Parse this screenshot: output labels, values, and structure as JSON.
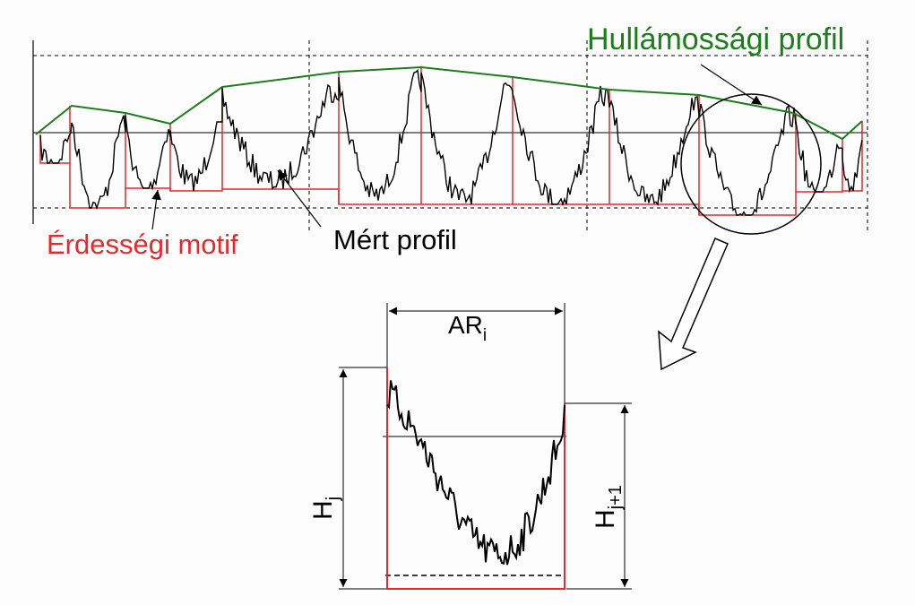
{
  "labels": {
    "waviness": "Hullámossági profil",
    "roughness": "Érdességi motif",
    "measured": "Mért profil"
  },
  "detail": {
    "width": {
      "symbol": "AR",
      "subscript": "i"
    },
    "height_left": {
      "symbol": "H",
      "subscript": "j"
    },
    "height_right": {
      "symbol": "H",
      "subscript": "j+1"
    }
  }
}
